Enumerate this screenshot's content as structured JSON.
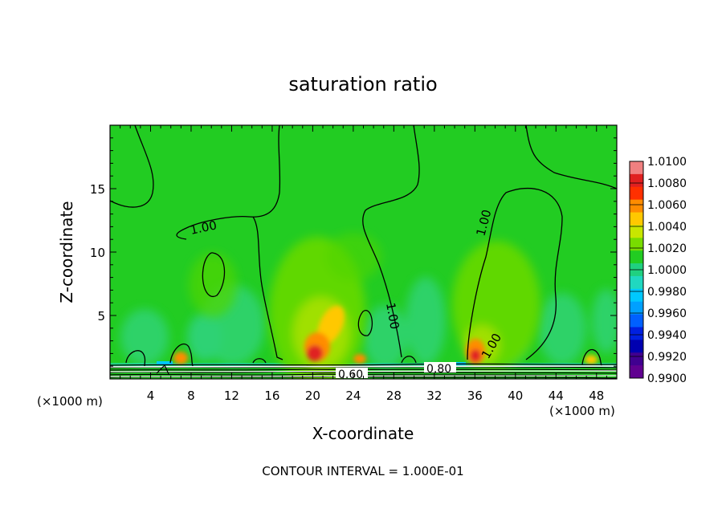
{
  "chart_data": {
    "type": "heatmap",
    "title": "saturation ratio",
    "xlabel": "X-coordinate",
    "ylabel": "Z-coordinate",
    "x_unit_left": "(×1000 m)",
    "x_unit_right": "(×1000 m)",
    "footer": "CONTOUR INTERVAL = 1.000E-01",
    "xlim": [
      0,
      50
    ],
    "ylim": [
      0,
      20
    ],
    "x_ticks": [
      4,
      8,
      12,
      16,
      20,
      24,
      28,
      32,
      36,
      40,
      44,
      48
    ],
    "y_ticks": [
      5,
      10,
      15
    ],
    "colorbar": {
      "labels": [
        "1.0100",
        "1.0080",
        "1.0060",
        "1.0040",
        "1.0020",
        "1.0000",
        "0.9980",
        "0.9960",
        "0.9940",
        "0.9920",
        "0.9900"
      ],
      "colors": [
        "#f08080",
        "#e02020",
        "#ff3000",
        "#ff8c00",
        "#ffc800",
        "#c8e600",
        "#78dc00",
        "#22cc22",
        "#20d080",
        "#20d8c0",
        "#00c8ff",
        "#00a0ff",
        "#0060ff",
        "#0020e0",
        "#0000b0",
        "#400090",
        "#600090"
      ]
    },
    "background_value": 1.0,
    "contour_labels": [
      {
        "text": "1.00",
        "x": 9.5,
        "z": 11.8
      },
      {
        "text": "1.00",
        "x": 27.5,
        "z": 4.5
      },
      {
        "text": "1.00",
        "x": 37.5,
        "z": 12.3
      },
      {
        "text": "1.00",
        "x": 38.5,
        "z": 2.2
      },
      {
        "text": "0.60",
        "x": 24.0,
        "z": 0.2
      },
      {
        "text": "0.80",
        "x": 32.8,
        "z": 0.8
      }
    ],
    "hotspots": [
      {
        "x": 20.2,
        "z": 2.0,
        "value": 1.006
      },
      {
        "x": 21.5,
        "z": 4.0,
        "value": 1.004
      },
      {
        "x": 36.0,
        "z": 1.8,
        "value": 1.006
      },
      {
        "x": 6.9,
        "z": 1.5,
        "value": 1.004
      },
      {
        "x": 24.8,
        "z": 1.5,
        "value": 1.004
      },
      {
        "x": 47.5,
        "z": 1.3,
        "value": 1.004
      }
    ]
  }
}
